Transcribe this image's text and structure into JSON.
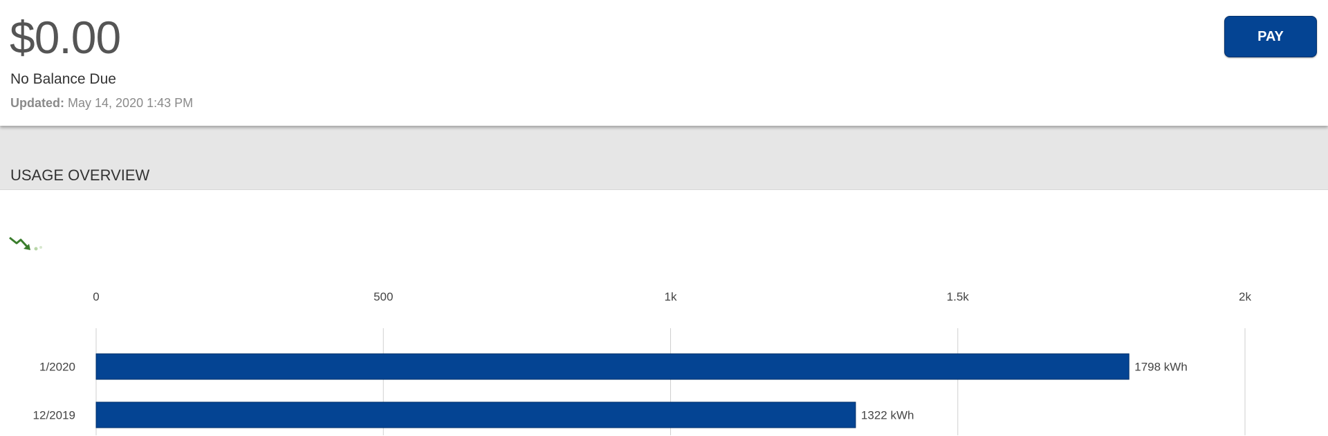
{
  "balance": {
    "amount": "$0.00",
    "status": "No Balance Due",
    "updated_label": "Updated:",
    "updated_value": "May 14, 2020 1:43 PM",
    "pay_label": "PAY"
  },
  "usage": {
    "section_title": "USAGE OVERVIEW",
    "trend_icon": "trending-down-icon"
  },
  "colors": {
    "accent": "#044493",
    "band": "#e6e6e6",
    "trend": "#3a7d2c"
  },
  "chart_data": {
    "type": "bar",
    "orientation": "horizontal",
    "categories": [
      "1/2020",
      "12/2019"
    ],
    "values": [
      1798,
      1322
    ],
    "value_labels": [
      "1798 kWh",
      "1322 kWh"
    ],
    "xlim": [
      0,
      2000
    ],
    "x_ticks": [
      0,
      500,
      1000,
      1500,
      2000
    ],
    "x_tick_labels": [
      "0",
      "500",
      "1k",
      "1.5k",
      "2k"
    ],
    "grid": true,
    "color": "#044493"
  }
}
